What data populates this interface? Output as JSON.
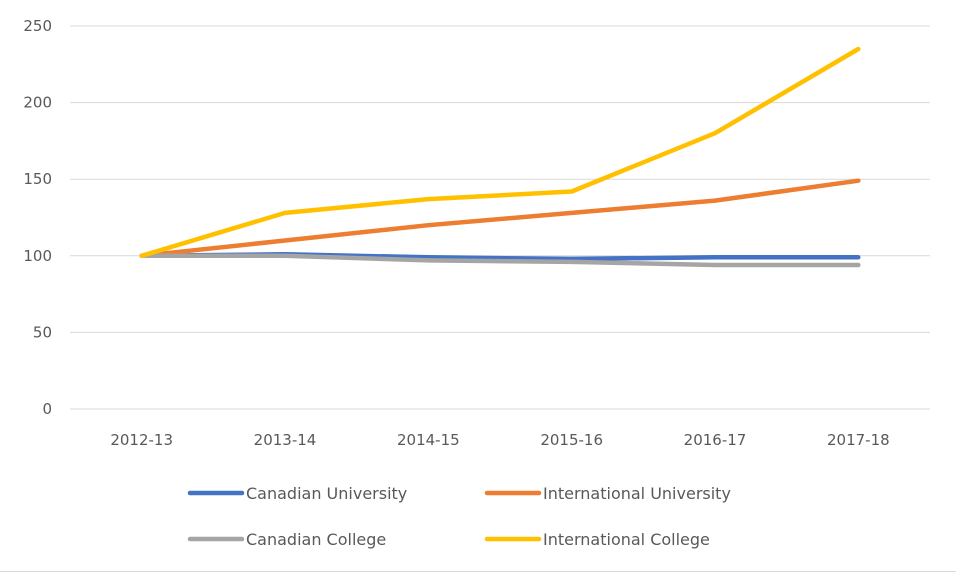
{
  "chart_data": {
    "type": "line",
    "title": "",
    "xlabel": "",
    "ylabel": "",
    "categories": [
      "2012-13",
      "2013-14",
      "2014-15",
      "2015-16",
      "2016-17",
      "2017-18"
    ],
    "ylim": [
      0,
      250
    ],
    "yticks": [
      "0",
      "50",
      "100",
      "150",
      "200",
      "250"
    ],
    "grid": true,
    "legend_position": "bottom",
    "series": [
      {
        "name": "Canadian University",
        "color": "#4472C4",
        "values": [
          100,
          101,
          99,
          98,
          99,
          99
        ]
      },
      {
        "name": "International University",
        "color": "#ED7D31",
        "values": [
          100,
          110,
          120,
          128,
          136,
          149
        ]
      },
      {
        "name": "Canadian College",
        "color": "#A5A5A5",
        "values": [
          100,
          100,
          97,
          96,
          94,
          94
        ]
      },
      {
        "name": "International College",
        "color": "#FFC000",
        "values": [
          100,
          128,
          137,
          142,
          180,
          235
        ]
      }
    ]
  }
}
